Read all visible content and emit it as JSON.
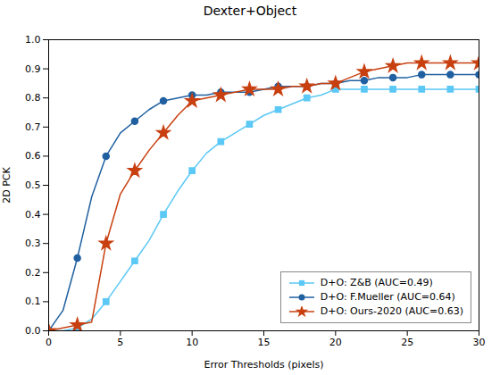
{
  "chart_data": {
    "type": "line",
    "title": "Dexter+Object",
    "xlabel": "Error Thresholds (pixels)",
    "ylabel": "2D PCK",
    "x": [
      0,
      1,
      2,
      3,
      4,
      5,
      6,
      7,
      8,
      9,
      10,
      11,
      12,
      13,
      14,
      15,
      16,
      17,
      18,
      19,
      20,
      21,
      22,
      23,
      24,
      25,
      26,
      27,
      28,
      29,
      30
    ],
    "series": [
      {
        "name": "D+O: Z&B (AUC=0.49)",
        "color": "#5BC8F5",
        "marker": "square",
        "values": [
          0.0,
          0.0,
          0.01,
          0.04,
          0.1,
          0.17,
          0.24,
          0.31,
          0.4,
          0.48,
          0.55,
          0.61,
          0.65,
          0.68,
          0.71,
          0.74,
          0.76,
          0.78,
          0.8,
          0.81,
          0.83,
          0.83,
          0.83,
          0.83,
          0.83,
          0.83,
          0.83,
          0.83,
          0.83,
          0.83,
          0.83
        ]
      },
      {
        "name": "D+O: F.Mueller (AUC=0.64)",
        "color": "#2060A0",
        "marker": "circle",
        "values": [
          0.0,
          0.07,
          0.25,
          0.46,
          0.6,
          0.68,
          0.72,
          0.76,
          0.79,
          0.8,
          0.81,
          0.81,
          0.82,
          0.82,
          0.82,
          0.83,
          0.84,
          0.84,
          0.84,
          0.85,
          0.85,
          0.86,
          0.86,
          0.87,
          0.87,
          0.87,
          0.88,
          0.88,
          0.88,
          0.88,
          0.88
        ]
      },
      {
        "name": "D+O: Ours-2020 (AUC=0.63)",
        "color": "#C84010",
        "marker": "star",
        "values": [
          0.0,
          0.01,
          0.02,
          0.03,
          0.3,
          0.47,
          0.55,
          0.62,
          0.68,
          0.74,
          0.79,
          0.8,
          0.81,
          0.82,
          0.83,
          0.83,
          0.83,
          0.84,
          0.84,
          0.85,
          0.85,
          0.87,
          0.89,
          0.9,
          0.91,
          0.92,
          0.92,
          0.92,
          0.92,
          0.92,
          0.92
        ]
      }
    ],
    "xlim": [
      0,
      30
    ],
    "ylim": [
      0,
      1
    ],
    "xticks": [
      0,
      5,
      10,
      15,
      20,
      25,
      30
    ],
    "yticks": [
      {
        "value": 0,
        "label": "0.0"
      },
      0.1,
      0.2,
      0.3,
      0.4,
      0.5,
      0.6,
      0.7,
      0.8,
      0.9,
      {
        "value": 1,
        "label": "1.0"
      }
    ],
    "legend": "lower right",
    "grid": false
  }
}
